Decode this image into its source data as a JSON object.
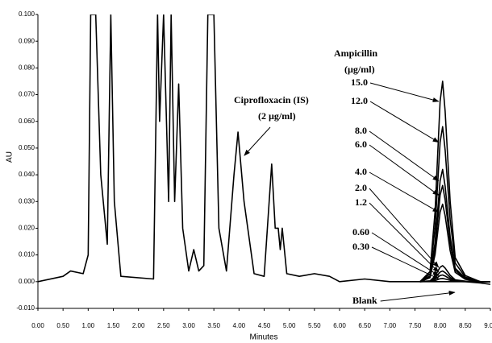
{
  "chart_data": {
    "type": "line",
    "x_label": "Minutes",
    "y_label": "AU",
    "xlim": [
      0,
      9
    ],
    "ylim": [
      -0.01,
      0.1
    ],
    "xticks": [
      {
        "value": 0,
        "label": "0.00"
      },
      {
        "value": 0.5,
        "label": "0.50"
      },
      {
        "value": 1,
        "label": "1.00"
      },
      {
        "value": 1.5,
        "label": "1.50"
      },
      {
        "value": 2,
        "label": "2.00"
      },
      {
        "value": 2.5,
        "label": "2.50"
      },
      {
        "value": 3,
        "label": "3.00"
      },
      {
        "value": 3.5,
        "label": "3.50"
      },
      {
        "value": 4,
        "label": "4.00"
      },
      {
        "value": 4.5,
        "label": "4.50"
      },
      {
        "value": 5,
        "label": "5.00"
      },
      {
        "value": 5.5,
        "label": "5.50"
      },
      {
        "value": 6,
        "label": "6.00"
      },
      {
        "value": 6.5,
        "label": "6.50"
      },
      {
        "value": 7,
        "label": "7.00"
      },
      {
        "value": 7.5,
        "label": "7.50"
      },
      {
        "value": 8,
        "label": "8.00"
      },
      {
        "value": 8.5,
        "label": "8.50"
      },
      {
        "value": 9,
        "label": "9.00"
      }
    ],
    "yticks": [
      {
        "value": -0.01,
        "label": "-0.010"
      },
      {
        "value": 0,
        "label": "0.000"
      },
      {
        "value": 0.01,
        "label": "0.010"
      },
      {
        "value": 0.02,
        "label": "0.020"
      },
      {
        "value": 0.03,
        "label": "0.030"
      },
      {
        "value": 0.04,
        "label": "0.040"
      },
      {
        "value": 0.05,
        "label": "0.050"
      },
      {
        "value": 0.06,
        "label": "0.060"
      },
      {
        "value": 0.07,
        "label": "0.070"
      },
      {
        "value": 0.08,
        "label": "0.080"
      },
      {
        "value": 0.09,
        "label": "0.090"
      },
      {
        "value": 0.1,
        "label": "0.100"
      }
    ],
    "color": "#000000",
    "x": [
      0,
      0.5,
      0.65,
      0.9,
      1.0,
      1.05,
      1.15,
      1.25,
      1.38,
      1.45,
      1.52,
      1.65,
      2.3,
      2.38,
      2.42,
      2.5,
      2.6,
      2.65,
      2.72,
      2.8,
      2.88,
      3.0,
      3.1,
      3.2,
      3.3,
      3.38,
      3.5,
      3.6,
      3.75,
      3.9,
      3.98,
      4.1,
      4.3,
      4.5,
      4.6,
      4.65,
      4.72,
      4.78,
      4.82,
      4.86,
      4.95,
      5.2,
      5.5,
      5.8,
      6.0,
      6.5,
      7.0,
      7.6
    ],
    "values": [
      0,
      0.002,
      0.004,
      0.003,
      0.01,
      0.1,
      0.1,
      0.04,
      0.014,
      0.1,
      0.03,
      0.002,
      0.001,
      0.1,
      0.06,
      0.1,
      0.03,
      0.1,
      0.03,
      0.074,
      0.02,
      0.004,
      0.012,
      0.004,
      0.006,
      0.1,
      0.1,
      0.02,
      0.004,
      0.04,
      0.056,
      0.03,
      0.003,
      0.002,
      0.03,
      0.044,
      0.02,
      0.02,
      0.012,
      0.02,
      0.003,
      0.002,
      0.003,
      0.002,
      0,
      0.001,
      0,
      0
    ],
    "annotations": [
      "Ciprofloxacin (IS)",
      "(2 µg/ml)",
      "Ampicillin",
      "(µg/ml)"
    ],
    "series": [
      {
        "name": "15.0",
        "color": "#000000",
        "x": [
          7.6,
          7.8,
          7.9,
          8.0,
          8.05,
          8.1,
          8.2,
          8.3,
          8.5,
          8.8,
          9.0
        ],
        "values": [
          0,
          0.0038,
          0.0263,
          0.0675,
          0.075,
          0.0638,
          0.03,
          0.009,
          0.0023,
          0,
          0
        ]
      },
      {
        "name": "12.0",
        "color": "#000000",
        "x": [
          7.6,
          7.8,
          7.9,
          8.0,
          8.05,
          8.1,
          8.2,
          8.3,
          8.5,
          8.8,
          9.0
        ],
        "values": [
          0,
          0.0029,
          0.0203,
          0.0522,
          0.058,
          0.0493,
          0.0232,
          0.007,
          0.0017,
          0,
          0
        ]
      },
      {
        "name": "8.0",
        "color": "#000000",
        "x": [
          7.6,
          7.8,
          7.9,
          8.0,
          8.05,
          8.1,
          8.2,
          8.3,
          8.5,
          8.8,
          9.0
        ],
        "values": [
          0,
          0.0021,
          0.0147,
          0.0378,
          0.042,
          0.0357,
          0.0168,
          0.005,
          0.0013,
          0,
          0
        ]
      },
      {
        "name": "6.0",
        "color": "#000000",
        "x": [
          7.6,
          7.8,
          7.9,
          8.0,
          8.05,
          8.1,
          8.2,
          8.3,
          8.5,
          8.8,
          9.0
        ],
        "values": [
          0,
          0.0018,
          0.0126,
          0.0324,
          0.036,
          0.0306,
          0.0144,
          0.0043,
          0.0011,
          0,
          0
        ]
      },
      {
        "name": "4.0",
        "color": "#000000",
        "x": [
          7.6,
          7.8,
          7.9,
          8.0,
          8.05,
          8.1,
          8.2,
          8.3,
          8.5,
          8.8,
          9.0
        ],
        "values": [
          0,
          0.0015,
          0.0102,
          0.0261,
          0.029,
          0.0247,
          0.0116,
          0.0035,
          0.0009,
          0,
          0
        ]
      },
      {
        "name": "2.0",
        "color": "#000000",
        "x": [
          7.6,
          7.8,
          7.9,
          8.0,
          8.05,
          8.1,
          8.2,
          8.3,
          8.5,
          8.8,
          9.0
        ],
        "values": [
          0,
          0.0003,
          0.0021,
          0.0054,
          0.006,
          0.0051,
          0.0024,
          0.0007,
          0.0002,
          0,
          0
        ]
      },
      {
        "name": "1.2",
        "color": "#000000",
        "x": [
          7.6,
          7.8,
          7.9,
          8.0,
          8.05,
          8.1,
          8.2,
          8.3,
          8.5,
          8.8,
          9.0
        ],
        "values": [
          0,
          0.0002,
          0.0014,
          0.0036,
          0.004,
          0.0034,
          0.0016,
          0.0005,
          0.0001,
          0,
          0
        ]
      },
      {
        "name": "0.60",
        "color": "#000000",
        "x": [
          7.6,
          7.8,
          7.9,
          8.0,
          8.05,
          8.1,
          8.2,
          8.3,
          8.5,
          8.8,
          9.0
        ],
        "values": [
          0,
          0.0001,
          0.0009,
          0.0023,
          0.0025,
          0.0021,
          0.001,
          0.0003,
          0.0001,
          0,
          0
        ]
      },
      {
        "name": "0.30",
        "color": "#000000",
        "x": [
          7.6,
          7.8,
          7.9,
          8.0,
          8.05,
          8.1,
          8.2,
          8.3,
          8.5,
          8.8,
          9.0
        ],
        "values": [
          0,
          0.0001,
          0.0004,
          0.0011,
          0.0012,
          0.001,
          0.0005,
          0.0001,
          0,
          0,
          0
        ]
      },
      {
        "name": "Blank",
        "color": "#000000",
        "x": [
          7.6,
          7.8,
          7.9,
          8.0,
          8.05,
          8.1,
          8.2,
          8.3,
          8.5,
          8.8,
          9.0
        ],
        "values": [
          0,
          0,
          0,
          0,
          0,
          0,
          0,
          0,
          0,
          -0.0005,
          -0.001
        ]
      }
    ]
  }
}
